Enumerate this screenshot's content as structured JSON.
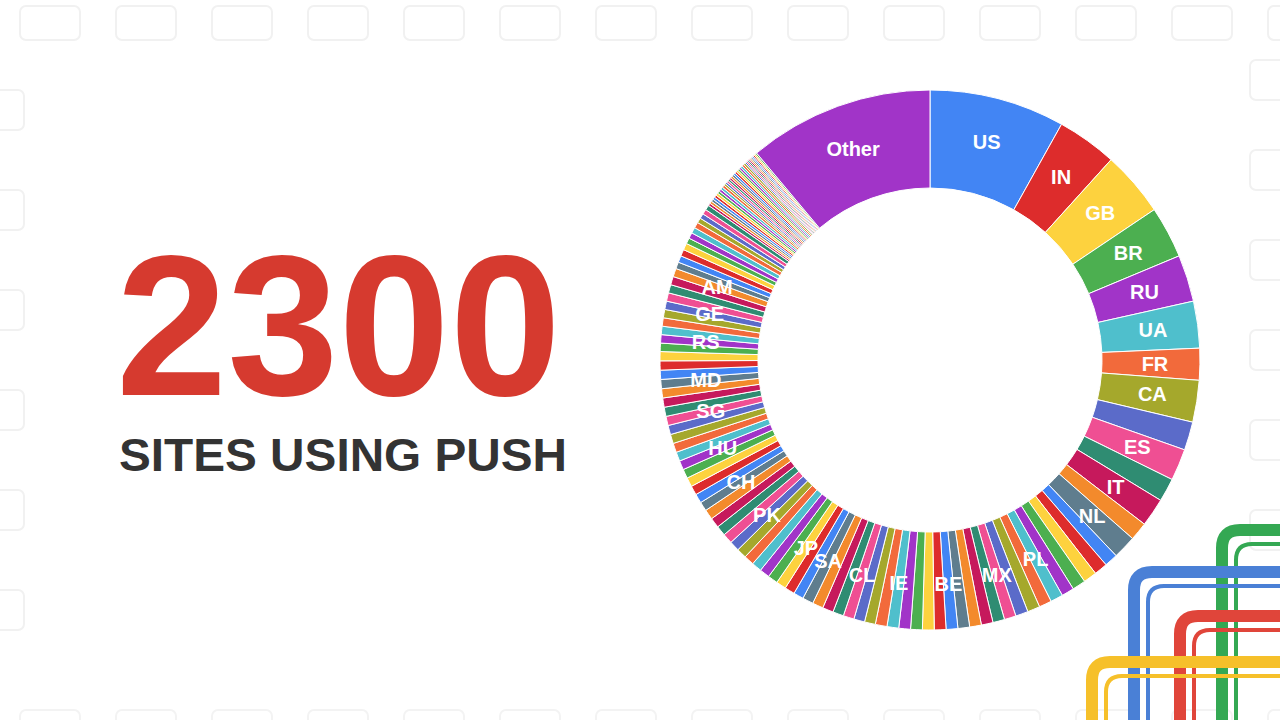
{
  "chart_data": {
    "type": "donut",
    "title": "2300",
    "subtitle": "SITES USING PUSH",
    "categories": [
      "US",
      "IN",
      "GB",
      "BR",
      "RU",
      "UA",
      "FR",
      "CA",
      null,
      "ES",
      null,
      "IT",
      null,
      "NL",
      null,
      null,
      null,
      null,
      null,
      "PL",
      null,
      null,
      null,
      "MX",
      null,
      null,
      null,
      null,
      "BE",
      null,
      null,
      null,
      null,
      "IE",
      null,
      null,
      null,
      "CL",
      null,
      null,
      null,
      "SA",
      null,
      null,
      "JP",
      null,
      null,
      null,
      null,
      null,
      "PK",
      null,
      null,
      null,
      null,
      "CH",
      null,
      null,
      null,
      null,
      "HU",
      null,
      null,
      null,
      null,
      "SG",
      null,
      null,
      null,
      "MD",
      null,
      null,
      null,
      null,
      "RS",
      null,
      null,
      null,
      "GE",
      null,
      null,
      null,
      "AM",
      null,
      null,
      null,
      null,
      null,
      null,
      null,
      null,
      null,
      null,
      null,
      null,
      null,
      null,
      null,
      null,
      null,
      null,
      null,
      null,
      null,
      null,
      null,
      null,
      null,
      null,
      null,
      null,
      null,
      null,
      null,
      null,
      null,
      null,
      null,
      null,
      null,
      null,
      null,
      null,
      null,
      null,
      null,
      null,
      null,
      null,
      null,
      "Other"
    ],
    "values": [
      8.1,
      3.6,
      3.9,
      3.1,
      2.8,
      2.8,
      1.9,
      2.5,
      1.7,
      1.9,
      1.4,
      1.7,
      1.1,
      1.4,
      0.8,
      0.8,
      0.8,
      0.8,
      0.75,
      0.75,
      0.75,
      0.75,
      0.75,
      0.7,
      0.7,
      0.7,
      0.7,
      0.7,
      0.7,
      0.7,
      0.7,
      0.7,
      0.7,
      0.7,
      0.7,
      0.65,
      0.65,
      0.65,
      0.65,
      0.65,
      0.65,
      0.65,
      0.6,
      0.6,
      0.6,
      0.6,
      0.6,
      0.6,
      0.6,
      0.6,
      0.6,
      0.6,
      0.6,
      0.6,
      0.6,
      0.55,
      0.55,
      0.55,
      0.55,
      0.55,
      0.55,
      0.55,
      0.55,
      0.55,
      0.55,
      0.55,
      0.55,
      0.55,
      0.55,
      0.55,
      0.55,
      0.55,
      0.55,
      0.5,
      0.5,
      0.5,
      0.5,
      0.5,
      0.5,
      0.5,
      0.5,
      0.5,
      0.5,
      0.4,
      0.4,
      0.4,
      0.4,
      0.35,
      0.35,
      0.35,
      0.35,
      0.3,
      0.3,
      0.3,
      0.3,
      0.15,
      0.15,
      0.15,
      0.15,
      0.15,
      0.15,
      0.15,
      0.15,
      0.15,
      0.15,
      0.12,
      0.12,
      0.12,
      0.12,
      0.12,
      0.12,
      0.12,
      0.12,
      0.12,
      0.12,
      0.12,
      0.12,
      0.12,
      0.12,
      0.12,
      0.09,
      0.09,
      0.09,
      0.09,
      0.09,
      0.09,
      0.09,
      0.09,
      0.09,
      0.09,
      11.1
    ],
    "data_labels": false
  }
}
